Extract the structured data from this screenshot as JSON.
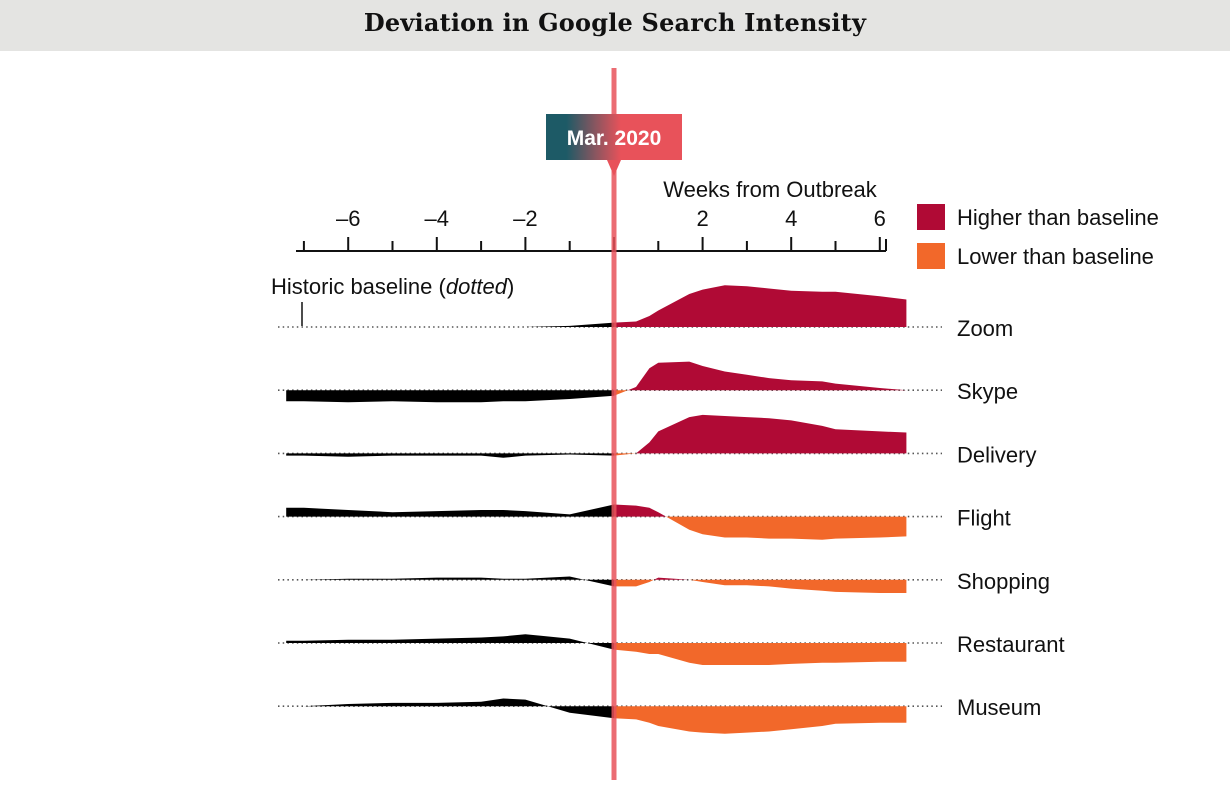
{
  "chart_data": {
    "type": "area",
    "title": "Deviation in Google Search Intensity",
    "xlabel": "Weeks from Outbreak",
    "marker_label": "Mar. 2020",
    "baseline_note": {
      "text_before": "Historic baseline (",
      "text_em": "dotted",
      "text_after": ")"
    },
    "x_ticks": [
      -6,
      -4,
      -2,
      2,
      4,
      6
    ],
    "x_tick_labels": [
      "–6",
      "–4",
      "–2",
      "2",
      "4",
      "6"
    ],
    "xlim": [
      -7.5,
      6.7
    ],
    "legend": [
      {
        "label": "Higher than baseline",
        "color": "#b00a35"
      },
      {
        "label": "Lower than baseline",
        "color": "#f2682a"
      }
    ],
    "colors": {
      "higher": "#b00a35",
      "lower": "#f2682a",
      "pre_outbreak": "#000000",
      "marker_line": "#e8525a",
      "marker_dark": "#1d5a66",
      "marker_light": "#e8525a"
    },
    "x": [
      -7.4,
      -7.0,
      -6.0,
      -5.0,
      -4.0,
      -3.0,
      -2.5,
      -2.0,
      -1.0,
      0.0,
      0.5,
      0.8,
      1.0,
      1.7,
      2.0,
      2.5,
      3.0,
      3.5,
      4.0,
      4.7,
      5.0,
      6.0,
      6.6
    ],
    "y_unit": "deviation (relative)",
    "series": [
      {
        "name": "Zoom",
        "values": [
          0,
          0,
          0,
          0,
          0,
          0,
          0,
          0,
          0.1,
          0.4,
          0.5,
          1.0,
          1.5,
          3.0,
          3.4,
          3.8,
          3.7,
          3.5,
          3.3,
          3.2,
          3.2,
          2.8,
          2.5
        ]
      },
      {
        "name": "Skype",
        "values": [
          -1.0,
          -1.0,
          -1.1,
          -1.0,
          -1.1,
          -1.1,
          -1.0,
          -1.0,
          -0.8,
          -0.5,
          0.3,
          2.0,
          2.5,
          2.6,
          2.2,
          1.7,
          1.4,
          1.1,
          0.9,
          0.8,
          0.6,
          0.2,
          0.0
        ]
      },
      {
        "name": "Delivery",
        "values": [
          -0.2,
          -0.2,
          -0.3,
          -0.2,
          -0.2,
          -0.2,
          -0.4,
          -0.2,
          -0.1,
          -0.2,
          0.0,
          1.0,
          2.0,
          3.3,
          3.5,
          3.4,
          3.3,
          3.2,
          3.0,
          2.5,
          2.2,
          2.0,
          1.9
        ]
      },
      {
        "name": "Flight",
        "values": [
          0.8,
          0.8,
          0.6,
          0.4,
          0.5,
          0.6,
          0.6,
          0.5,
          0.2,
          1.1,
          1.0,
          0.8,
          0.4,
          -1.2,
          -1.6,
          -1.9,
          -1.9,
          -2.0,
          -2.0,
          -2.1,
          -2.0,
          -1.9,
          -1.8
        ]
      },
      {
        "name": "Shopping",
        "values": [
          0,
          0,
          0.1,
          0.1,
          0.2,
          0.2,
          0.1,
          0.1,
          0.3,
          -0.6,
          -0.6,
          -0.2,
          0.2,
          0.0,
          -0.2,
          -0.5,
          -0.5,
          -0.6,
          -0.8,
          -1.0,
          -1.1,
          -1.2,
          -1.2
        ]
      },
      {
        "name": "Restaurant",
        "values": [
          0.2,
          0.2,
          0.3,
          0.3,
          0.4,
          0.5,
          0.6,
          0.8,
          0.4,
          -0.6,
          -0.8,
          -1.0,
          -1.0,
          -1.8,
          -2.0,
          -2.0,
          -2.0,
          -2.0,
          -1.9,
          -1.8,
          -1.8,
          -1.7,
          -1.7
        ]
      },
      {
        "name": "Museum",
        "values": [
          0,
          0,
          0.2,
          0.3,
          0.3,
          0.4,
          0.7,
          0.6,
          -0.6,
          -1.1,
          -1.2,
          -1.5,
          -1.8,
          -2.3,
          -2.4,
          -2.5,
          -2.4,
          -2.3,
          -2.1,
          -1.8,
          -1.6,
          -1.5,
          -1.5
        ]
      }
    ]
  }
}
